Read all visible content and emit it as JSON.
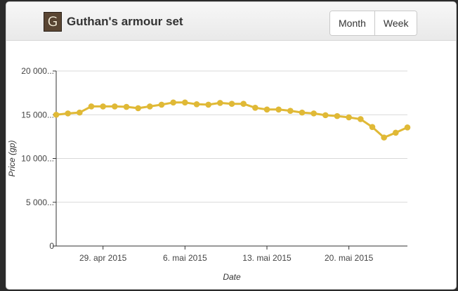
{
  "header": {
    "icon_letter": "G",
    "title": "Guthan's armour set",
    "buttons": [
      "Month",
      "Week"
    ]
  },
  "chart_data": {
    "type": "line",
    "xlabel": "Date",
    "ylabel": "Price (gp)",
    "ylim": [
      0,
      20000
    ],
    "ytick_values": [
      0,
      5000,
      10000,
      15000,
      20000
    ],
    "ytick_labels": [
      "0",
      "5 000...",
      "10 000...",
      "15 000...",
      "20 000..."
    ],
    "xtick_labels": [
      {
        "date": "2015-04-29",
        "label": "29. apr 2015"
      },
      {
        "date": "2015-05-06",
        "label": "6. mai 2015"
      },
      {
        "date": "2015-05-13",
        "label": "13. mai 2015"
      },
      {
        "date": "2015-05-20",
        "label": "20. mai 2015"
      }
    ],
    "xlim": [
      "2015-04-25",
      "2015-05-25"
    ],
    "grid": true,
    "line_color": "#e0b936",
    "series": [
      {
        "x": [
          "2015-04-25",
          "2015-04-26",
          "2015-04-27",
          "2015-04-28",
          "2015-04-29",
          "2015-04-30",
          "2015-05-01",
          "2015-05-02",
          "2015-05-03",
          "2015-05-04",
          "2015-05-05",
          "2015-05-06",
          "2015-05-07",
          "2015-05-08",
          "2015-05-09",
          "2015-05-10",
          "2015-05-11",
          "2015-05-12",
          "2015-05-13",
          "2015-05-14",
          "2015-05-15",
          "2015-05-16",
          "2015-05-17",
          "2015-05-18",
          "2015-05-19",
          "2015-05-20",
          "2015-05-21",
          "2015-05-22",
          "2015-05-23",
          "2015-05-24",
          "2015-05-25"
        ],
        "y": [
          15000,
          15150,
          15250,
          15950,
          15950,
          15950,
          15900,
          15750,
          15950,
          16150,
          16400,
          16400,
          16200,
          16150,
          16350,
          16250,
          16250,
          15800,
          15600,
          15600,
          15450,
          15250,
          15150,
          14950,
          14850,
          14700,
          14500,
          13600,
          12400,
          12950,
          13550
        ]
      }
    ]
  }
}
